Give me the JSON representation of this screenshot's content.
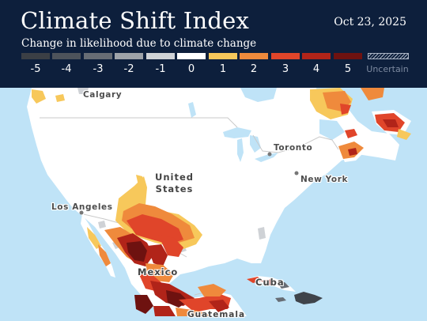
{
  "header": {
    "title": "Climate Shift Index",
    "date": "Oct 23, 2025",
    "subtitle": "Change in likelihood due to climate change"
  },
  "legend": {
    "items": [
      {
        "label": "-5",
        "color": "#3b3f45"
      },
      {
        "label": "-4",
        "color": "#4d535b"
      },
      {
        "label": "-3",
        "color": "#676d75"
      },
      {
        "label": "-2",
        "color": "#9ea3a9"
      },
      {
        "label": "-1",
        "color": "#cfd2d6"
      },
      {
        "label": "0",
        "color": "#ffffff"
      },
      {
        "label": "1",
        "color": "#f7c85b"
      },
      {
        "label": "2",
        "color": "#ef8a3c"
      },
      {
        "label": "3",
        "color": "#e0452a"
      },
      {
        "label": "4",
        "color": "#b12419"
      },
      {
        "label": "5",
        "color": "#6e1210"
      }
    ],
    "uncertain_label": "Uncertain"
  },
  "map": {
    "cities": [
      {
        "id": "calgary",
        "name": "Calgary"
      },
      {
        "id": "toronto",
        "name": "Toronto"
      },
      {
        "id": "new-york",
        "name": "New York"
      },
      {
        "id": "los-angeles",
        "name": "Los Angeles"
      }
    ],
    "countries": [
      {
        "id": "united-states",
        "line1": "United",
        "line2": "States"
      },
      {
        "id": "mexico",
        "name": "Mexico"
      },
      {
        "id": "cuba",
        "name": "Cuba"
      },
      {
        "id": "guatemala",
        "name": "Guatemala"
      }
    ],
    "colors": {
      "ocean": "#bfe3f7",
      "land": "#ffffff",
      "lakes": "#bfe3f7",
      "borders": "#c8c8c8"
    }
  }
}
